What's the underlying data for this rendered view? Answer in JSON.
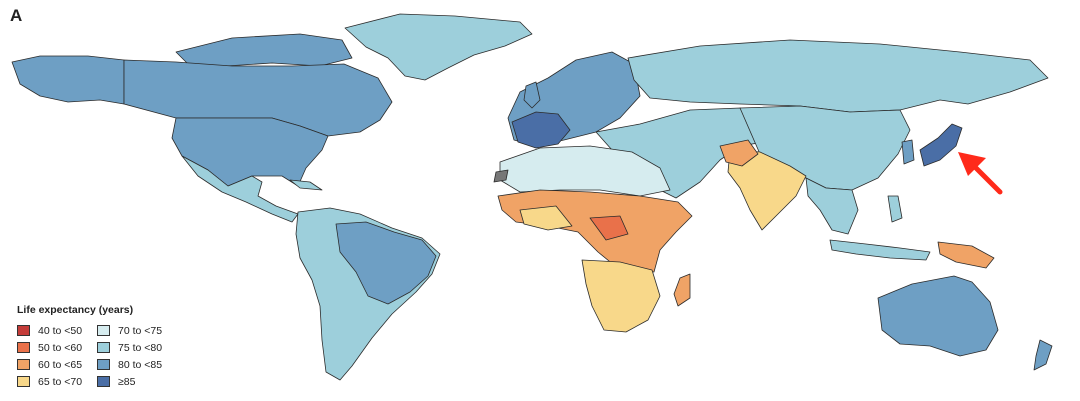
{
  "panel_label": "A",
  "legend": {
    "title": "Life expectancy (years)",
    "items": [
      {
        "label": "40 to <50",
        "color": "#c43c39"
      },
      {
        "label": "50 to <60",
        "color": "#e9714a"
      },
      {
        "label": "60 to <65",
        "color": "#f0a366"
      },
      {
        "label": "65 to <70",
        "color": "#f8d88a"
      },
      {
        "label": "70 to <75",
        "color": "#d6ecef"
      },
      {
        "label": "75 to <80",
        "color": "#9dcfdb"
      },
      {
        "label": "80 to <85",
        "color": "#6e9fc4"
      },
      {
        "label": "≥85",
        "color": "#4a6ea6"
      }
    ]
  },
  "annotation": {
    "type": "arrow",
    "color": "#ff2a1a",
    "points_to": "Japan"
  },
  "no_data_color": "#777777"
}
